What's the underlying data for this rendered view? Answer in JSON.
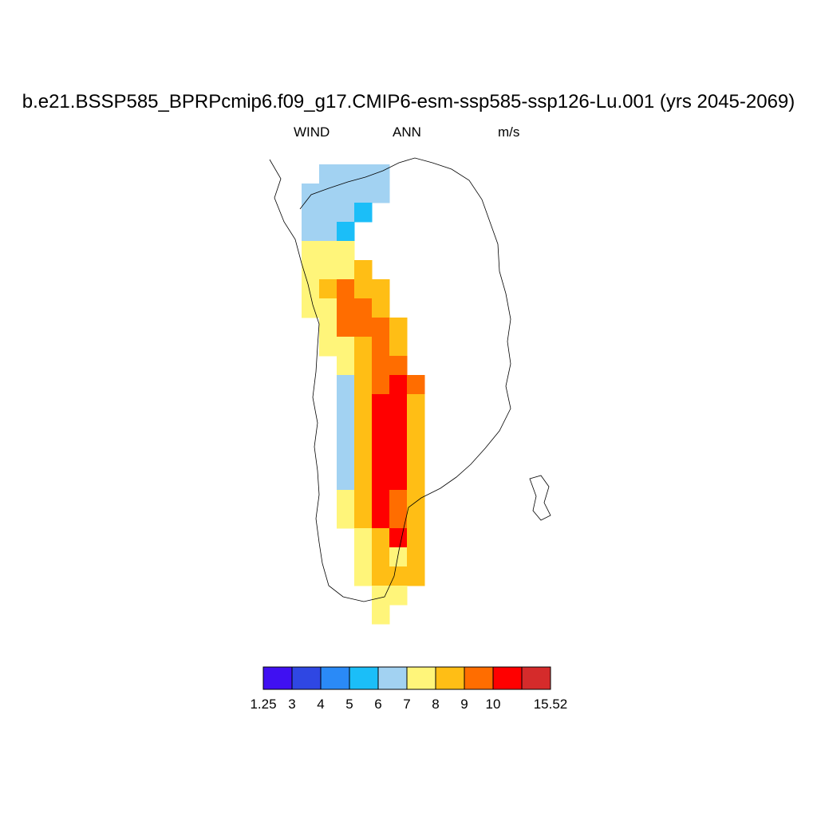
{
  "title": "b.e21.BSSP585_BPRPcmip6.f09_g17.CMIP6-esm-ssp585-ssp126-Lu.001 (yrs 2045-2069)",
  "left_label": "WIND",
  "center_label": "ANN",
  "right_label": "m/s",
  "colorbar": {
    "colors": [
      "#4010f2",
      "#2f47e3",
      "#2a8af7",
      "#1bbef8",
      "#a2d2f2",
      "#fff57a",
      "#ffbe15",
      "#ff6d00",
      "#ff0000",
      "#d52b2b"
    ],
    "labels": [
      "1.25",
      "3",
      "4",
      "5",
      "6",
      "7",
      "8",
      "9",
      "10",
      "15.52"
    ]
  },
  "chart_data": {
    "type": "heatmap",
    "variable": "WIND",
    "season": "ANN",
    "units": "m/s",
    "levels": [
      1.25,
      3,
      4,
      5,
      6,
      7,
      8,
      9,
      10,
      15.52
    ],
    "rows": [
      "...............",
      "...4444........",
      "..44444........",
      "..4443.........",
      "..443..........",
      "..555..........",
      "..5556.........",
      "..56766........",
      "..55776........",
      "...57776.......",
      "...55676.......",
      "....5677.......",
      "....46787......",
      "....46886......",
      "....46886......",
      "....46886......",
      "....46886......",
      "....46886......",
      "....56876......",
      "....56876......",
      ".....5686......",
      ".....5656......",
      ".....5666......",
      "......55.......",
      "......5........"
    ]
  }
}
